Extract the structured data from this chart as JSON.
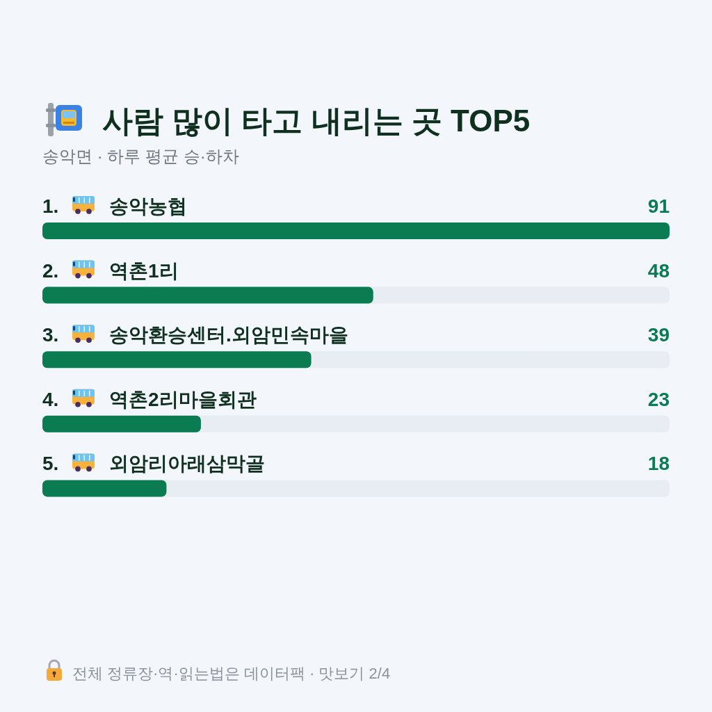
{
  "chart_data": {
    "type": "bar",
    "orientation": "horizontal",
    "title": "사람 많이 타고 내리는 곳 TOP5",
    "subtitle": "송악면 · 하루 평균 승·하차",
    "categories": [
      "1. 송악농협",
      "2. 역촌1리",
      "3. 송악환승센터.외암민속마을",
      "4. 역촌2리마을회관",
      "5. 외암리아래삼막골"
    ],
    "values": [
      91,
      48,
      39,
      23,
      18
    ],
    "color": "#0b7b52",
    "data_labels": true,
    "annotations": [
      "전체 정류장·역·읽는법은 데이터팩 · 맛보기 2/4"
    ]
  }
}
